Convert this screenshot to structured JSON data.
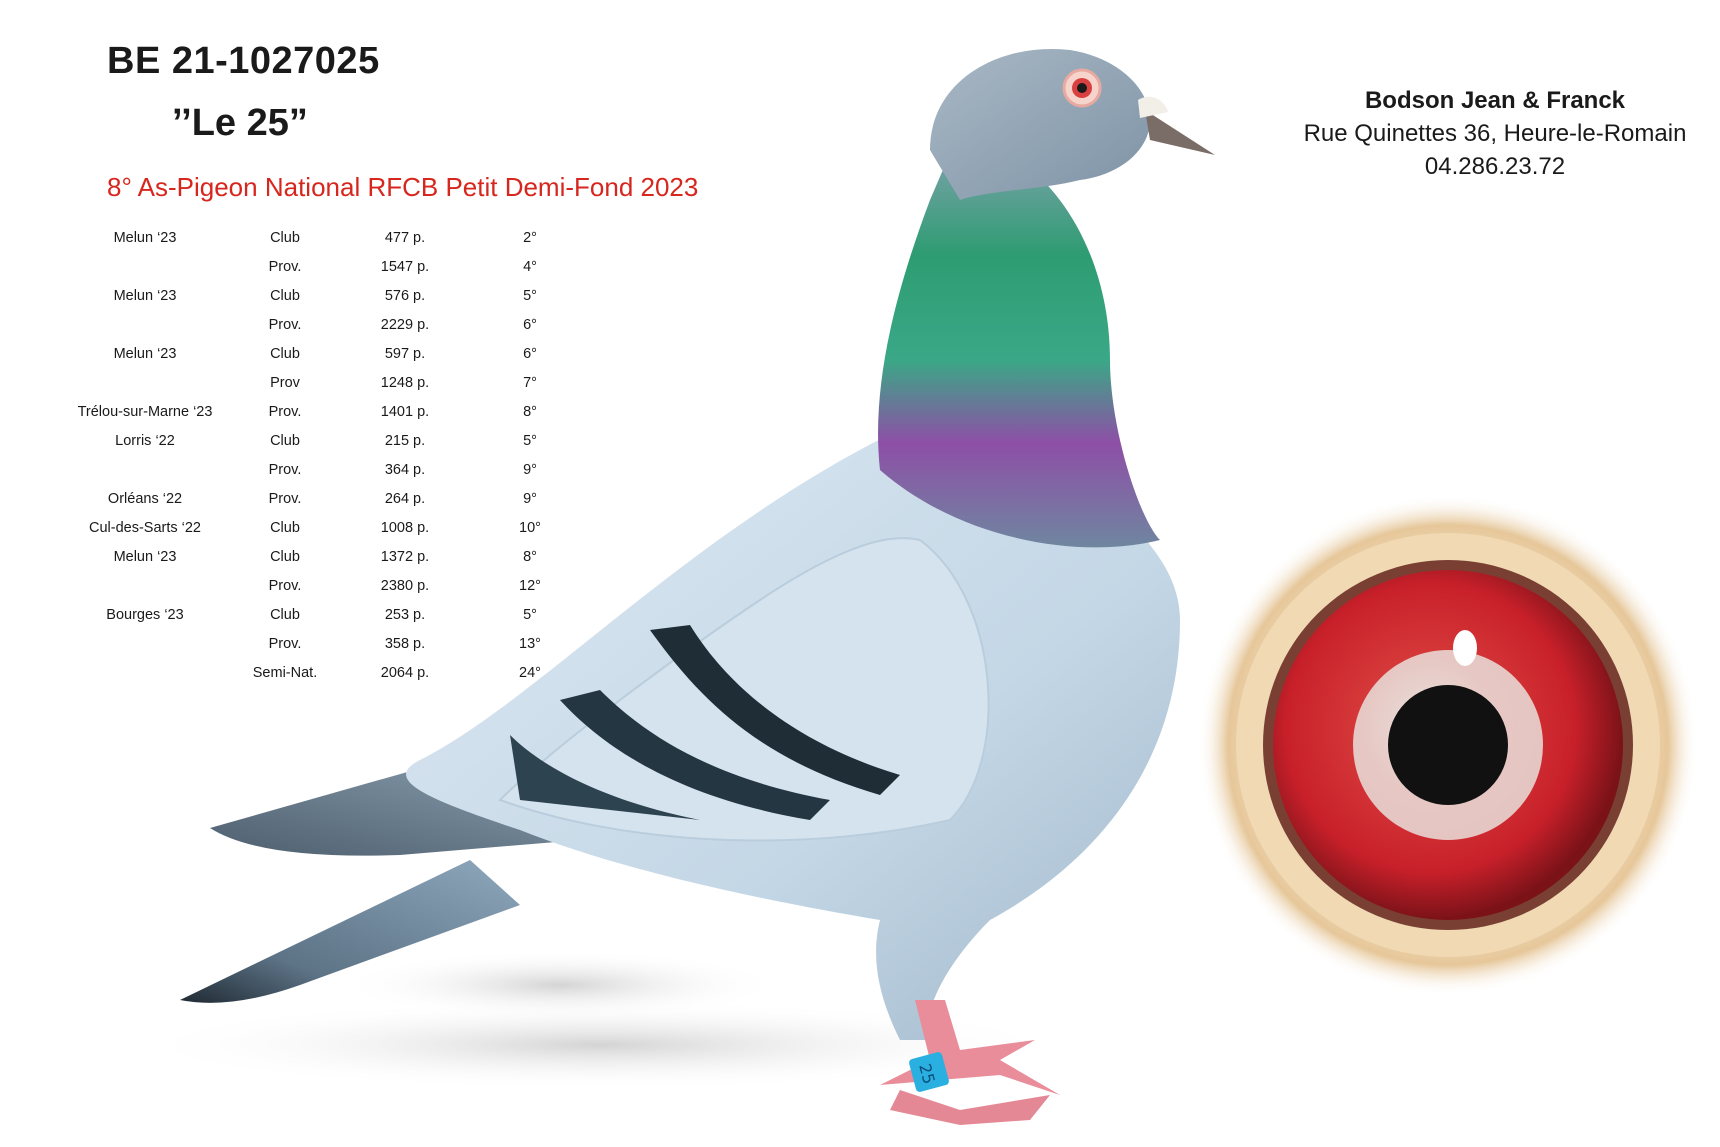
{
  "ring_number": "BE 21-1027025",
  "nickname": "’’Le 25”",
  "award": "8° As-Pigeon National RFCB Petit Demi-Fond 2023",
  "owner": {
    "name": "Bodson Jean & Franck",
    "address": "Rue Quinettes 36, Heure-le-Romain",
    "phone": "04.286.23.72"
  },
  "results": [
    {
      "race": "Melun ‘23",
      "level": "Club",
      "birds": "477 p.",
      "place": "2°"
    },
    {
      "race": "",
      "level": "Prov.",
      "birds": "1547 p.",
      "place": "4°"
    },
    {
      "race": "Melun ‘23",
      "level": "Club",
      "birds": "576 p.",
      "place": "5°"
    },
    {
      "race": "",
      "level": "Prov.",
      "birds": "2229 p.",
      "place": "6°"
    },
    {
      "race": "Melun ‘23",
      "level": "Club",
      "birds": "597 p.",
      "place": "6°"
    },
    {
      "race": "",
      "level": "Prov",
      "birds": "1248 p.",
      "place": "7°"
    },
    {
      "race": "Trélou-sur-Marne ‘23",
      "level": "Prov.",
      "birds": "1401 p.",
      "place": "8°"
    },
    {
      "race": "Lorris ‘22",
      "level": "Club",
      "birds": "215 p.",
      "place": "5°"
    },
    {
      "race": "",
      "level": "Prov.",
      "birds": "364 p.",
      "place": "9°"
    },
    {
      "race": "Orléans ‘22",
      "level": "Prov.",
      "birds": "264 p.",
      "place": "9°"
    },
    {
      "race": "Cul-des-Sarts ‘22",
      "level": "Club",
      "birds": "1008 p.",
      "place": "10°"
    },
    {
      "race": "Melun ‘23",
      "level": "Club",
      "birds": "1372 p.",
      "place": "8°"
    },
    {
      "race": "",
      "level": "Prov.",
      "birds": "2380 p.",
      "place": "12°"
    },
    {
      "race": "Bourges ‘23",
      "level": "Club",
      "birds": "253 p.",
      "place": "5°"
    },
    {
      "race": "",
      "level": "Prov.",
      "birds": "358 p.",
      "place": "13°"
    },
    {
      "race": "",
      "level": "Semi-Nat.",
      "birds": "2064 p.",
      "place": "24°"
    }
  ],
  "leg_ring_text": "25",
  "colors": {
    "award": "#d7261d",
    "plumage_blue": "#c9dbe8",
    "neck_green": "#2f9a6e",
    "neck_purple": "#9b4fa8",
    "eye_red": "#c8202a"
  }
}
